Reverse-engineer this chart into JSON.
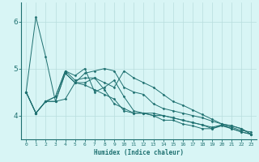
{
  "xlabel": "Humidex (Indice chaleur)",
  "bg_color": "#d8f5f5",
  "line_color": "#1e7070",
  "grid_color_major": "#b8dede",
  "grid_color_minor": "#cceaea",
  "xlim": [
    -0.5,
    23.5
  ],
  "ylim": [
    3.5,
    6.4
  ],
  "yticks": [
    4,
    5,
    6
  ],
  "xticks": [
    0,
    1,
    2,
    3,
    4,
    5,
    6,
    7,
    8,
    9,
    10,
    11,
    12,
    13,
    14,
    15,
    16,
    17,
    18,
    19,
    20,
    21,
    22,
    23
  ],
  "series": [
    [
      4.5,
      6.1,
      5.25,
      4.3,
      4.35,
      4.7,
      4.65,
      4.55,
      4.45,
      4.35,
      4.1,
      4.05,
      4.05,
      4.0,
      4.0,
      3.95,
      3.9,
      3.85,
      3.8,
      3.75,
      3.8,
      3.75,
      3.68,
      3.65
    ],
    [
      4.5,
      4.05,
      4.3,
      4.3,
      4.9,
      4.7,
      4.7,
      4.8,
      4.55,
      4.25,
      4.15,
      4.05,
      4.05,
      4.0,
      3.9,
      3.9,
      3.82,
      3.78,
      3.72,
      3.72,
      3.78,
      3.72,
      3.65,
      3.6
    ],
    [
      4.5,
      4.05,
      4.3,
      4.4,
      4.95,
      4.85,
      5.0,
      4.5,
      4.6,
      4.75,
      4.4,
      4.1,
      4.05,
      4.05,
      4.0,
      3.95,
      3.9,
      3.85,
      3.8,
      3.72,
      3.8,
      3.72,
      3.65,
      3.6
    ],
    [
      4.5,
      4.05,
      4.3,
      4.3,
      4.9,
      4.7,
      4.9,
      4.95,
      5.0,
      4.95,
      4.6,
      4.5,
      4.45,
      4.25,
      4.15,
      4.1,
      4.05,
      4.0,
      3.95,
      3.88,
      3.82,
      3.78,
      3.72,
      3.6
    ],
    [
      4.5,
      4.05,
      4.3,
      4.4,
      4.95,
      4.75,
      4.8,
      4.8,
      4.7,
      4.6,
      4.95,
      4.8,
      4.7,
      4.6,
      4.45,
      4.3,
      4.22,
      4.12,
      4.02,
      3.92,
      3.82,
      3.78,
      3.72,
      3.6
    ]
  ]
}
